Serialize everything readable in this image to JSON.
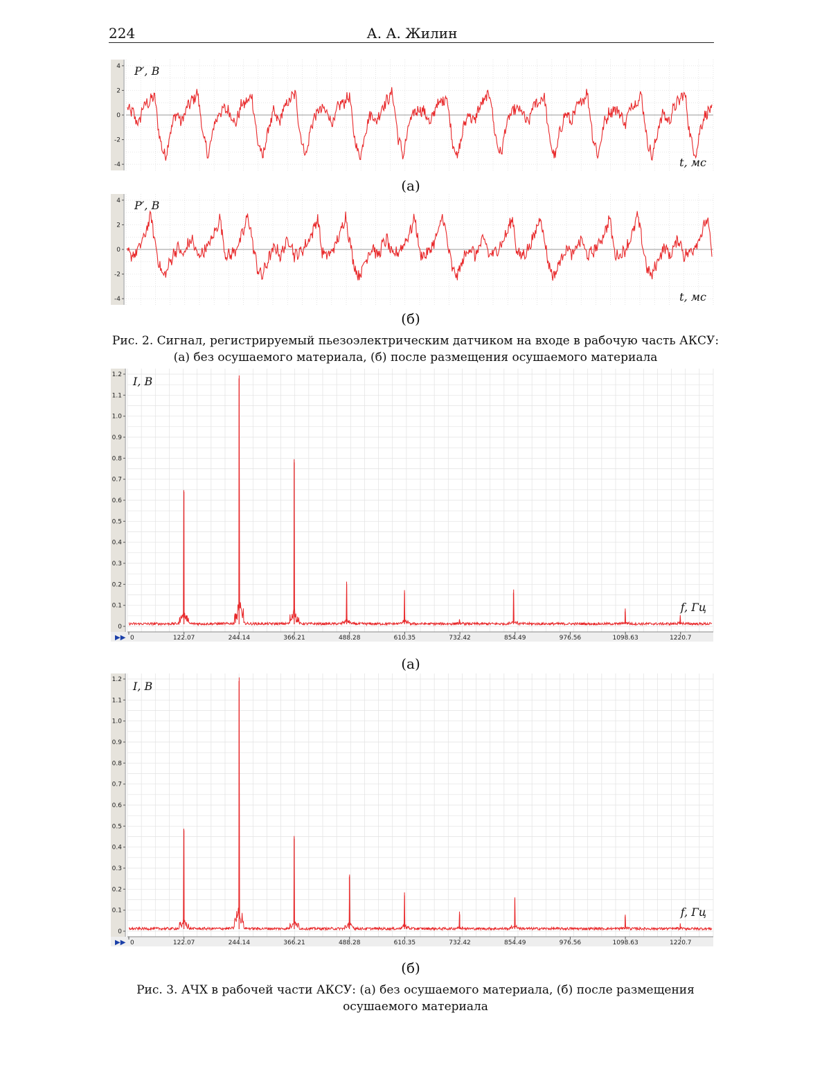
{
  "header": {
    "page_number": "224",
    "author": "А. А. Жилин"
  },
  "figure2": {
    "panel_a_label": "(а)",
    "panel_b_label": "(б)",
    "caption_line1": "Рис. 2. Сигнал, регистрируемый пьезоэлектрическим датчиком на входе в рабочую часть АКСУ:",
    "caption_line2": "(а) без осушаемого материала, (б) после размещения осушаемого материала"
  },
  "figure3": {
    "panel_a_label": "(а)",
    "panel_b_label": "(б)",
    "caption_line1": "Рис. 3. АЧХ в рабочей части АКСУ: (а) без осушаемого материала, (б) после размещения",
    "caption_line2": "осушаемого материала"
  },
  "colors": {
    "signal": "#e8282a",
    "grid": "#c9c9c9",
    "axis_strip": "#e6e3dc",
    "zero_line": "#999999"
  },
  "chart_data": [
    {
      "id": "fig2a",
      "type": "line",
      "ylabel": "P′, В",
      "xlabel": "t, мс",
      "yticks": [
        "4",
        "2",
        "0",
        "-2",
        "-4"
      ],
      "ylim": [
        -4.5,
        4.5
      ],
      "grid": true,
      "period_y": [
        0.5,
        0.2,
        -0.8,
        0.8,
        1.0,
        1.6,
        -2.0,
        -3.5,
        -1.2,
        0.2,
        -0.6,
        0.6,
        1.2,
        1.8,
        -1.8,
        -3.3,
        -0.8,
        0.2
      ]
    },
    {
      "id": "fig2b",
      "type": "line",
      "ylabel": "P′, В",
      "xlabel": "t, мс",
      "yticks": [
        "4",
        "2",
        "0",
        "-2",
        "-4"
      ],
      "ylim": [
        -4.5,
        4.5
      ],
      "grid": true,
      "period_y": [
        -0.3,
        -0.5,
        -0.2,
        0.5,
        1.4,
        2.8,
        0.5,
        -1.5,
        -2.2,
        -1.2,
        -0.3,
        0.2,
        -0.6,
        0.4,
        0.8,
        -0.5,
        -0.3,
        0.1,
        0.7,
        1.5,
        2.6
      ]
    },
    {
      "id": "fig3a",
      "type": "line",
      "ylabel": "I, В",
      "xlabel": "f, Гц",
      "yticks": [
        "1.2",
        "1.1",
        "1.0",
        "0.9",
        "0.8",
        "0.7",
        "0.6",
        "0.5",
        "0.4",
        "0.3",
        "0.2",
        "0.1",
        "0"
      ],
      "xticks": [
        "0",
        "122.07",
        "244.14",
        "366.21",
        "488.28",
        "610.35",
        "732.42",
        "854.49",
        "976.56",
        "1098.63",
        "1220.7"
      ],
      "xlim": [
        0,
        1290
      ],
      "ylim": [
        0,
        1.2
      ],
      "grid": true,
      "peaks": [
        {
          "f": 122,
          "i": 0.64
        },
        {
          "f": 244,
          "i": 1.18
        },
        {
          "f": 366,
          "i": 0.78
        },
        {
          "f": 482,
          "i": 0.2
        },
        {
          "f": 610,
          "i": 0.16
        },
        {
          "f": 732,
          "i": 0.02
        },
        {
          "f": 851,
          "i": 0.16
        },
        {
          "f": 1098,
          "i": 0.07
        },
        {
          "f": 1220,
          "i": 0.04
        }
      ]
    },
    {
      "id": "fig3b",
      "type": "line",
      "ylabel": "I, В",
      "xlabel": "f, Гц",
      "yticks": [
        "1.2",
        "1.1",
        "1.0",
        "0.9",
        "0.8",
        "0.7",
        "0.6",
        "0.5",
        "0.4",
        "0.3",
        "0.2",
        "0.1",
        "0"
      ],
      "xticks": [
        "0",
        "122.07",
        "244.14",
        "366.21",
        "488.28",
        "610.35",
        "732.42",
        "854.49",
        "976.56",
        "1098.63",
        "1220.7"
      ],
      "xlim": [
        0,
        1290
      ],
      "ylim": [
        0,
        1.2
      ],
      "grid": true,
      "peaks": [
        {
          "f": 122,
          "i": 0.48
        },
        {
          "f": 244,
          "i": 1.19
        },
        {
          "f": 366,
          "i": 0.44
        },
        {
          "f": 488,
          "i": 0.26
        },
        {
          "f": 610,
          "i": 0.17
        },
        {
          "f": 732,
          "i": 0.08
        },
        {
          "f": 854,
          "i": 0.15
        },
        {
          "f": 1098,
          "i": 0.07
        },
        {
          "f": 1220,
          "i": 0.02
        }
      ]
    }
  ]
}
